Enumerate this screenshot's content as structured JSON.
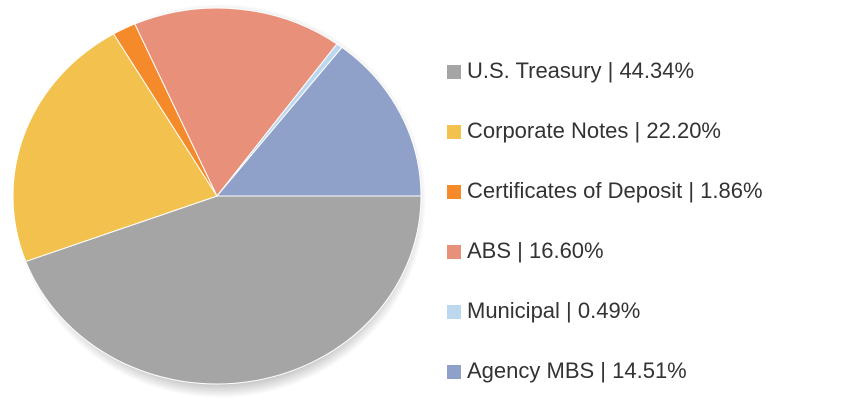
{
  "chart_data": {
    "type": "pie",
    "categories": [
      "U.S. Treasury",
      "Corporate Notes",
      "Certificates of Deposit",
      "ABS",
      "Municipal",
      "Agency MBS"
    ],
    "values": [
      44.34,
      22.2,
      1.86,
      16.6,
      0.49,
      14.51
    ],
    "value_labels": [
      "44.34%",
      "22.20%",
      "1.86%",
      "16.60%",
      "0.49%",
      "14.51%"
    ],
    "label_separator": " | ",
    "colors": [
      "#a5a5a5",
      "#f2c14e",
      "#f58a2a",
      "#e8907a",
      "#bdd7ee",
      "#8fa1c9"
    ],
    "legend": "right"
  }
}
